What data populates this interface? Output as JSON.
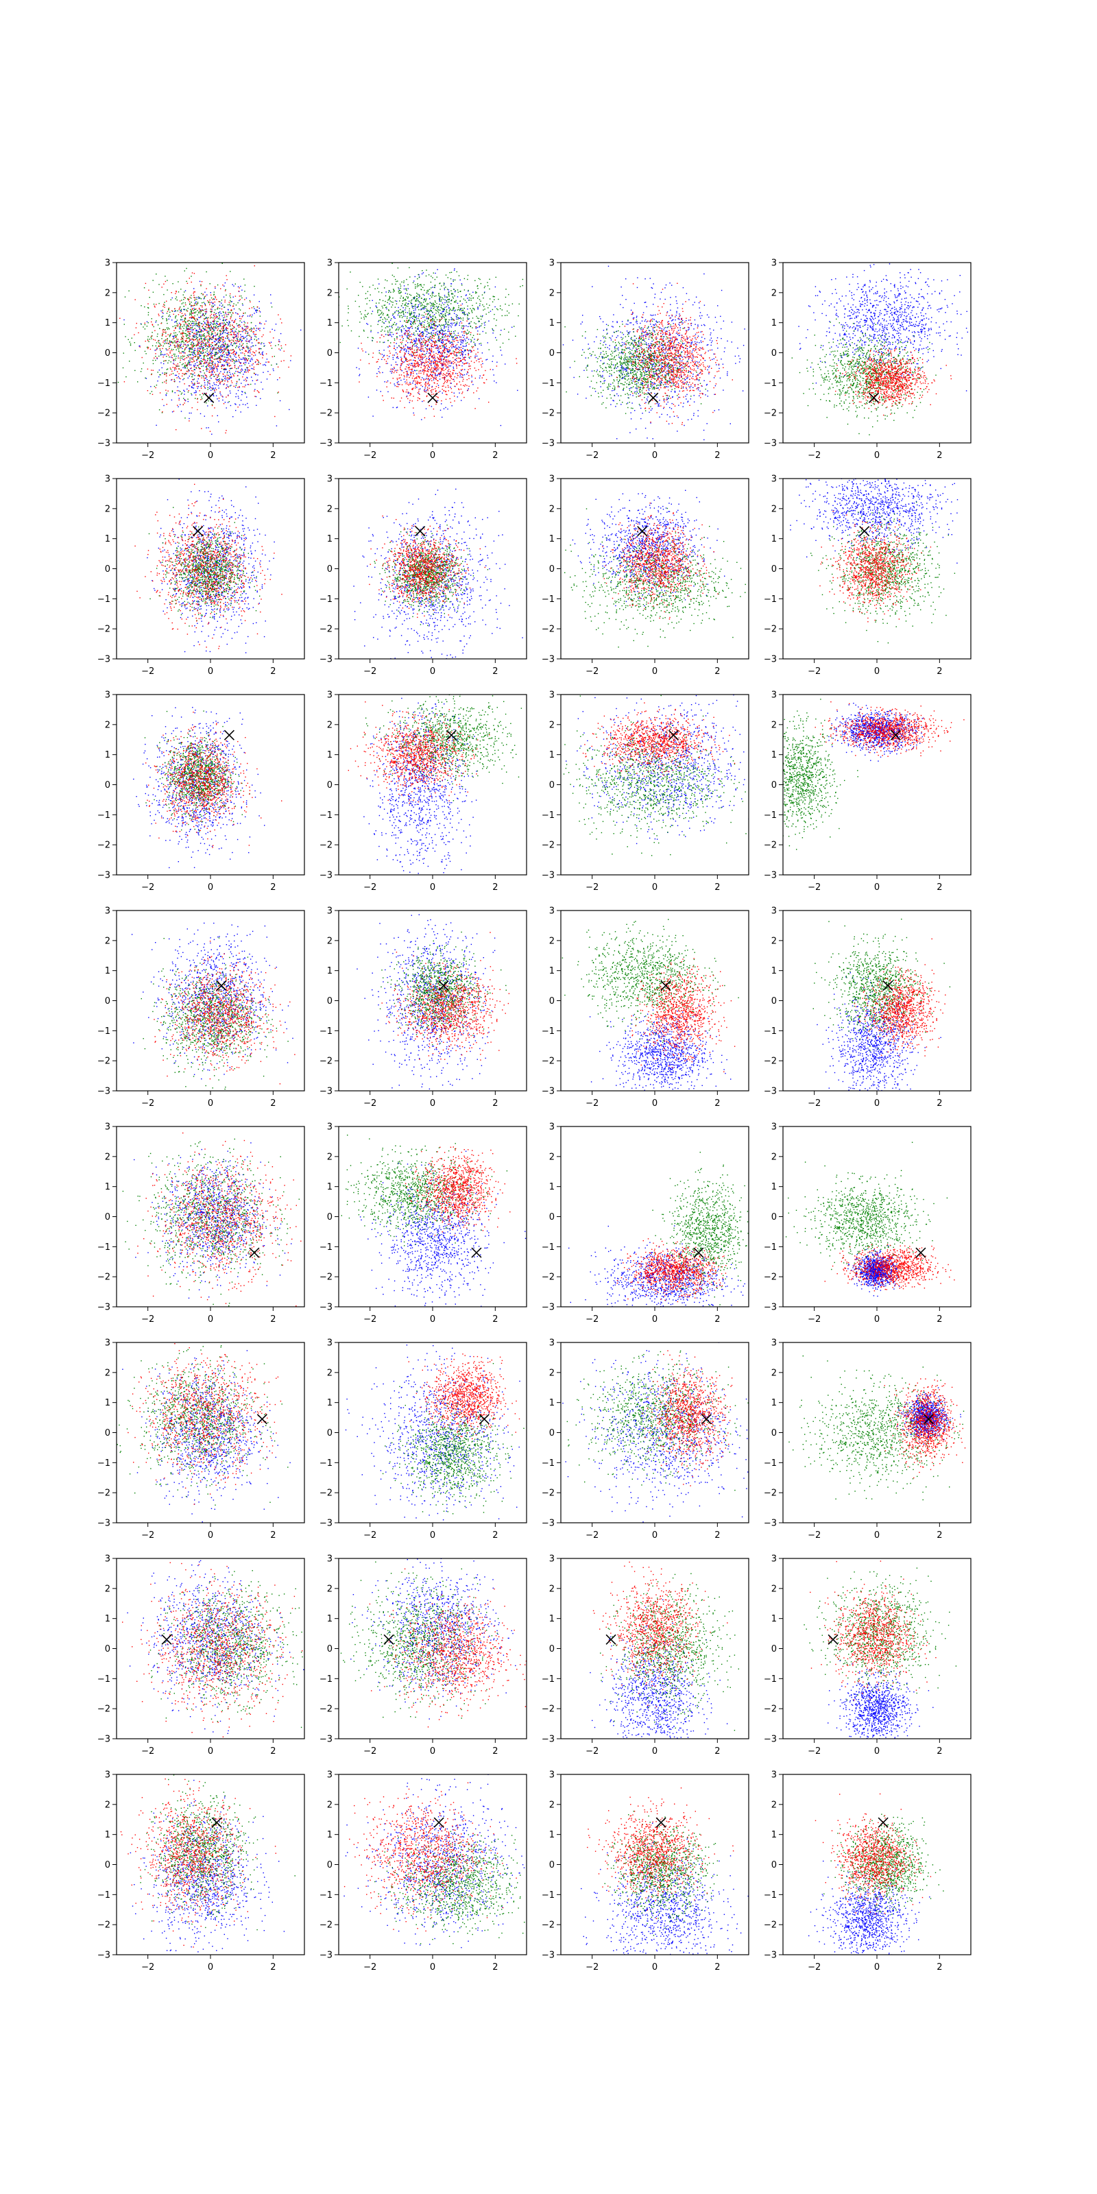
{
  "layout_grid": {
    "rows": 8,
    "cols": 4
  },
  "colors": {
    "series_a": "#0000ff",
    "series_b": "#008000",
    "series_c": "#ff0000",
    "marker": "#000000",
    "axis": "#000000"
  },
  "axes_common": {
    "xlim": [
      -3,
      3
    ],
    "ylim": [
      -3,
      3
    ],
    "xticks": [
      -2,
      0,
      2
    ],
    "yticks": [
      -3,
      -2,
      -1,
      0,
      1,
      2,
      3
    ],
    "xtick_labels": [
      "−2",
      "0",
      "2"
    ],
    "ytick_labels": [
      "−3",
      "−2",
      "−1",
      "0",
      "1",
      "2",
      "3"
    ]
  },
  "chart_data": [
    {
      "type": "scatter",
      "row": 0,
      "col": 0,
      "marker": [
        -0.05,
        -1.5
      ],
      "clusters": {
        "blue": {
          "cx": 0.2,
          "cy": 0.0,
          "sx": 0.85,
          "sy": 0.95
        },
        "green": {
          "cx": -0.4,
          "cy": 0.5,
          "sx": 0.9,
          "sy": 0.85
        },
        "red": {
          "cx": -0.1,
          "cy": 0.3,
          "sx": 0.95,
          "sy": 0.95
        }
      }
    },
    {
      "type": "scatter",
      "row": 0,
      "col": 1,
      "marker": [
        0.0,
        -1.5
      ],
      "clusters": {
        "blue": {
          "cx": 0.0,
          "cy": 0.3,
          "sx": 0.85,
          "sy": 0.9
        },
        "green": {
          "cx": -0.1,
          "cy": 1.4,
          "sx": 1.2,
          "sy": 0.6
        },
        "red": {
          "cx": 0.0,
          "cy": -0.4,
          "sx": 0.75,
          "sy": 0.6
        }
      }
    },
    {
      "type": "scatter",
      "row": 0,
      "col": 2,
      "marker": [
        -0.05,
        -1.5
      ],
      "clusters": {
        "blue": {
          "cx": 0.1,
          "cy": -0.1,
          "sx": 1.0,
          "sy": 1.0
        },
        "green": {
          "cx": -0.5,
          "cy": -0.4,
          "sx": 0.7,
          "sy": 0.6
        },
        "red": {
          "cx": 0.5,
          "cy": -0.2,
          "sx": 0.6,
          "sy": 0.7
        }
      }
    },
    {
      "type": "scatter",
      "row": 0,
      "col": 3,
      "marker": [
        -0.1,
        -1.5
      ],
      "clusters": {
        "blue": {
          "cx": 0.3,
          "cy": 1.0,
          "sx": 1.0,
          "sy": 0.75
        },
        "green": {
          "cx": -0.3,
          "cy": -0.7,
          "sx": 0.8,
          "sy": 0.6
        },
        "red": {
          "cx": 0.4,
          "cy": -0.9,
          "sx": 0.55,
          "sy": 0.4
        }
      }
    },
    {
      "type": "scatter",
      "row": 1,
      "col": 0,
      "marker": [
        -0.4,
        1.25
      ],
      "clusters": {
        "blue": {
          "cx": 0.1,
          "cy": 0.0,
          "sx": 0.7,
          "sy": 1.0
        },
        "green": {
          "cx": -0.1,
          "cy": -0.1,
          "sx": 0.55,
          "sy": 0.6
        },
        "red": {
          "cx": -0.2,
          "cy": 0.0,
          "sx": 0.75,
          "sy": 0.85
        }
      }
    },
    {
      "type": "scatter",
      "row": 1,
      "col": 1,
      "marker": [
        -0.4,
        1.25
      ],
      "clusters": {
        "blue": {
          "cx": 0.0,
          "cy": -0.4,
          "sx": 0.9,
          "sy": 1.1
        },
        "green": {
          "cx": -0.2,
          "cy": -0.2,
          "sx": 0.55,
          "sy": 0.5
        },
        "red": {
          "cx": -0.3,
          "cy": 0.0,
          "sx": 0.55,
          "sy": 0.55
        }
      }
    },
    {
      "type": "scatter",
      "row": 1,
      "col": 2,
      "marker": [
        -0.4,
        1.25
      ],
      "clusters": {
        "blue": {
          "cx": -0.2,
          "cy": 0.7,
          "sx": 0.8,
          "sy": 0.7
        },
        "green": {
          "cx": 0.0,
          "cy": -0.5,
          "sx": 1.1,
          "sy": 0.7
        },
        "red": {
          "cx": 0.1,
          "cy": 0.2,
          "sx": 0.6,
          "sy": 0.6
        }
      }
    },
    {
      "type": "scatter",
      "row": 1,
      "col": 3,
      "marker": [
        -0.4,
        1.25
      ],
      "clusters": {
        "blue": {
          "cx": 0.0,
          "cy": 2.0,
          "sx": 1.0,
          "sy": 0.6
        },
        "green": {
          "cx": 0.3,
          "cy": -0.1,
          "sx": 0.8,
          "sy": 0.7
        },
        "red": {
          "cx": -0.1,
          "cy": 0.0,
          "sx": 0.55,
          "sy": 0.6
        }
      }
    },
    {
      "type": "scatter",
      "row": 2,
      "col": 0,
      "marker": [
        0.6,
        1.65
      ],
      "clusters": {
        "blue": {
          "cx": -0.4,
          "cy": 0.0,
          "sx": 0.7,
          "sy": 1.0
        },
        "green": {
          "cx": -0.4,
          "cy": 0.3,
          "sx": 0.5,
          "sy": 0.6
        },
        "red": {
          "cx": -0.3,
          "cy": 0.1,
          "sx": 0.6,
          "sy": 0.7
        }
      }
    },
    {
      "type": "scatter",
      "row": 2,
      "col": 1,
      "marker": [
        0.6,
        1.65
      ],
      "clusters": {
        "blue": {
          "cx": -0.4,
          "cy": -0.2,
          "sx": 0.7,
          "sy": 1.3
        },
        "green": {
          "cx": 0.6,
          "cy": 1.5,
          "sx": 0.9,
          "sy": 0.6
        },
        "red": {
          "cx": -0.5,
          "cy": 1.0,
          "sx": 0.7,
          "sy": 0.55
        }
      }
    },
    {
      "type": "scatter",
      "row": 2,
      "col": 2,
      "marker": [
        0.6,
        1.65
      ],
      "clusters": {
        "blue": {
          "cx": 0.4,
          "cy": 0.6,
          "sx": 1.1,
          "sy": 1.0
        },
        "green": {
          "cx": -0.2,
          "cy": 0.1,
          "sx": 1.1,
          "sy": 0.8
        },
        "red": {
          "cx": 0.0,
          "cy": 1.4,
          "sx": 0.8,
          "sy": 0.4
        }
      }
    },
    {
      "type": "scatter",
      "row": 2,
      "col": 3,
      "marker": [
        0.6,
        1.65
      ],
      "clusters": {
        "blue": {
          "cx": 0.0,
          "cy": 1.8,
          "sx": 0.6,
          "sy": 0.3
        },
        "green": {
          "cx": -2.4,
          "cy": 0.2,
          "sx": 0.5,
          "sy": 0.8
        },
        "red": {
          "cx": 0.3,
          "cy": 1.8,
          "sx": 0.75,
          "sy": 0.3
        }
      }
    },
    {
      "type": "scatter",
      "row": 3,
      "col": 0,
      "marker": [
        0.35,
        0.5
      ],
      "clusters": {
        "blue": {
          "cx": 0.2,
          "cy": 0.1,
          "sx": 0.8,
          "sy": 1.0
        },
        "green": {
          "cx": 0.0,
          "cy": -0.6,
          "sx": 0.75,
          "sy": 0.75
        },
        "red": {
          "cx": 0.3,
          "cy": -0.5,
          "sx": 0.75,
          "sy": 0.75
        }
      }
    },
    {
      "type": "scatter",
      "row": 3,
      "col": 1,
      "marker": [
        0.35,
        0.5
      ],
      "clusters": {
        "blue": {
          "cx": 0.0,
          "cy": 0.0,
          "sx": 0.8,
          "sy": 1.2
        },
        "green": {
          "cx": 0.2,
          "cy": 0.3,
          "sx": 0.6,
          "sy": 0.6
        },
        "red": {
          "cx": 0.5,
          "cy": -0.3,
          "sx": 0.7,
          "sy": 0.6
        }
      }
    },
    {
      "type": "scatter",
      "row": 3,
      "col": 2,
      "marker": [
        0.35,
        0.5
      ],
      "clusters": {
        "blue": {
          "cx": 0.3,
          "cy": -1.8,
          "sx": 0.7,
          "sy": 0.6
        },
        "green": {
          "cx": -0.3,
          "cy": 0.8,
          "sx": 0.9,
          "sy": 0.7
        },
        "red": {
          "cx": 0.8,
          "cy": -0.4,
          "sx": 0.55,
          "sy": 0.65
        }
      }
    },
    {
      "type": "scatter",
      "row": 3,
      "col": 3,
      "marker": [
        0.35,
        0.5
      ],
      "clusters": {
        "blue": {
          "cx": -0.1,
          "cy": -1.5,
          "sx": 0.6,
          "sy": 0.8
        },
        "green": {
          "cx": 0.0,
          "cy": 0.4,
          "sx": 0.65,
          "sy": 0.7
        },
        "red": {
          "cx": 0.8,
          "cy": -0.3,
          "sx": 0.5,
          "sy": 0.55
        }
      }
    },
    {
      "type": "scatter",
      "row": 4,
      "col": 0,
      "marker": [
        1.4,
        -1.2
      ],
      "clusters": {
        "blue": {
          "cx": 0.1,
          "cy": 0.0,
          "sx": 0.75,
          "sy": 0.9
        },
        "green": {
          "cx": 0.0,
          "cy": 0.0,
          "sx": 0.95,
          "sy": 0.95
        },
        "red": {
          "cx": 0.3,
          "cy": -0.1,
          "sx": 0.95,
          "sy": 0.95
        }
      }
    },
    {
      "type": "scatter",
      "row": 4,
      "col": 1,
      "marker": [
        1.4,
        -1.2
      ],
      "clusters": {
        "blue": {
          "cx": 0.1,
          "cy": -0.8,
          "sx": 0.8,
          "sy": 0.9
        },
        "green": {
          "cx": -0.6,
          "cy": 0.8,
          "sx": 0.9,
          "sy": 0.6
        },
        "red": {
          "cx": 0.8,
          "cy": 0.9,
          "sx": 0.55,
          "sy": 0.55
        }
      }
    },
    {
      "type": "scatter",
      "row": 4,
      "col": 2,
      "marker": [
        1.4,
        -1.2
      ],
      "clusters": {
        "blue": {
          "cx": 0.3,
          "cy": -2.1,
          "sx": 0.9,
          "sy": 0.5
        },
        "green": {
          "cx": 1.7,
          "cy": -0.5,
          "sx": 0.6,
          "sy": 0.8
        },
        "red": {
          "cx": 0.6,
          "cy": -1.8,
          "sx": 0.65,
          "sy": 0.35
        }
      }
    },
    {
      "type": "scatter",
      "row": 4,
      "col": 3,
      "marker": [
        1.4,
        -1.2
      ],
      "clusters": {
        "blue": {
          "cx": 0.0,
          "cy": -1.8,
          "sx": 0.3,
          "sy": 0.25
        },
        "green": {
          "cx": -0.4,
          "cy": -0.1,
          "sx": 0.8,
          "sy": 0.6
        },
        "red": {
          "cx": 0.5,
          "cy": -1.7,
          "sx": 0.65,
          "sy": 0.3
        }
      }
    },
    {
      "type": "scatter",
      "row": 5,
      "col": 0,
      "marker": [
        1.65,
        0.45
      ],
      "clusters": {
        "blue": {
          "cx": -0.1,
          "cy": 0.0,
          "sx": 0.8,
          "sy": 1.0
        },
        "green": {
          "cx": -0.4,
          "cy": 0.4,
          "sx": 0.9,
          "sy": 0.9
        },
        "red": {
          "cx": -0.2,
          "cy": 0.6,
          "sx": 0.95,
          "sy": 0.9
        }
      }
    },
    {
      "type": "scatter",
      "row": 5,
      "col": 1,
      "marker": [
        1.65,
        0.45
      ],
      "clusters": {
        "blue": {
          "cx": 0.3,
          "cy": -0.2,
          "sx": 1.0,
          "sy": 1.1
        },
        "green": {
          "cx": 0.6,
          "cy": -0.7,
          "sx": 0.7,
          "sy": 0.7
        },
        "red": {
          "cx": 1.1,
          "cy": 1.2,
          "sx": 0.55,
          "sy": 0.55
        }
      }
    },
    {
      "type": "scatter",
      "row": 5,
      "col": 2,
      "marker": [
        1.65,
        0.45
      ],
      "clusters": {
        "blue": {
          "cx": 0.3,
          "cy": 0.0,
          "sx": 1.1,
          "sy": 1.1
        },
        "green": {
          "cx": 0.0,
          "cy": 0.5,
          "sx": 1.0,
          "sy": 0.8
        },
        "red": {
          "cx": 1.1,
          "cy": 0.6,
          "sx": 0.55,
          "sy": 0.7
        }
      }
    },
    {
      "type": "scatter",
      "row": 5,
      "col": 3,
      "marker": [
        1.65,
        0.45
      ],
      "clusters": {
        "blue": {
          "cx": 1.6,
          "cy": 0.5,
          "sx": 0.3,
          "sy": 0.3
        },
        "green": {
          "cx": 0.0,
          "cy": 0.0,
          "sx": 1.0,
          "sy": 0.8
        },
        "red": {
          "cx": 1.6,
          "cy": 0.3,
          "sx": 0.4,
          "sy": 0.6
        }
      }
    },
    {
      "type": "scatter",
      "row": 6,
      "col": 0,
      "marker": [
        -1.4,
        0.3
      ],
      "clusters": {
        "blue": {
          "cx": 0.0,
          "cy": 0.3,
          "sx": 0.9,
          "sy": 1.0
        },
        "green": {
          "cx": 0.6,
          "cy": 0.1,
          "sx": 0.9,
          "sy": 0.9
        },
        "red": {
          "cx": 0.2,
          "cy": 0.0,
          "sx": 1.0,
          "sy": 1.0
        }
      }
    },
    {
      "type": "scatter",
      "row": 6,
      "col": 1,
      "marker": [
        -1.4,
        0.3
      ],
      "clusters": {
        "blue": {
          "cx": 0.2,
          "cy": 0.6,
          "sx": 0.9,
          "sy": 1.0
        },
        "green": {
          "cx": -0.4,
          "cy": 0.2,
          "sx": 0.9,
          "sy": 0.9
        },
        "red": {
          "cx": 0.7,
          "cy": -0.2,
          "sx": 0.8,
          "sy": 0.8
        }
      }
    },
    {
      "type": "scatter",
      "row": 6,
      "col": 2,
      "marker": [
        -1.4,
        0.3
      ],
      "clusters": {
        "blue": {
          "cx": 0.0,
          "cy": -1.6,
          "sx": 0.7,
          "sy": 0.9
        },
        "green": {
          "cx": 0.5,
          "cy": 0.0,
          "sx": 0.8,
          "sy": 0.9
        },
        "red": {
          "cx": 0.0,
          "cy": 0.6,
          "sx": 0.65,
          "sy": 0.75
        }
      }
    },
    {
      "type": "scatter",
      "row": 6,
      "col": 3,
      "marker": [
        -1.4,
        0.3
      ],
      "clusters": {
        "blue": {
          "cx": 0.0,
          "cy": -2.0,
          "sx": 0.5,
          "sy": 0.5
        },
        "green": {
          "cx": 0.1,
          "cy": 0.5,
          "sx": 0.8,
          "sy": 0.8
        },
        "red": {
          "cx": -0.1,
          "cy": 0.4,
          "sx": 0.6,
          "sy": 0.7
        }
      }
    },
    {
      "type": "scatter",
      "row": 7,
      "col": 0,
      "marker": [
        0.2,
        1.4
      ],
      "clusters": {
        "blue": {
          "cx": -0.2,
          "cy": -0.5,
          "sx": 0.8,
          "sy": 1.0
        },
        "green": {
          "cx": -0.3,
          "cy": 0.4,
          "sx": 0.7,
          "sy": 0.85
        },
        "red": {
          "cx": -0.6,
          "cy": 0.3,
          "sx": 0.75,
          "sy": 0.9
        }
      }
    },
    {
      "type": "scatter",
      "row": 7,
      "col": 1,
      "marker": [
        0.2,
        1.4
      ],
      "clusters": {
        "blue": {
          "cx": 0.3,
          "cy": 0.0,
          "sx": 1.0,
          "sy": 1.1
        },
        "green": {
          "cx": 0.8,
          "cy": -0.7,
          "sx": 0.9,
          "sy": 0.7
        },
        "red": {
          "cx": -0.3,
          "cy": 0.4,
          "sx": 0.9,
          "sy": 0.85
        }
      }
    },
    {
      "type": "scatter",
      "row": 7,
      "col": 2,
      "marker": [
        0.2,
        1.4
      ],
      "clusters": {
        "blue": {
          "cx": 0.3,
          "cy": -1.6,
          "sx": 0.9,
          "sy": 0.9
        },
        "green": {
          "cx": 0.2,
          "cy": -0.2,
          "sx": 0.7,
          "sy": 0.65
        },
        "red": {
          "cx": 0.0,
          "cy": 0.4,
          "sx": 0.7,
          "sy": 0.65
        }
      }
    },
    {
      "type": "scatter",
      "row": 7,
      "col": 3,
      "marker": [
        0.2,
        1.4
      ],
      "clusters": {
        "blue": {
          "cx": -0.3,
          "cy": -1.8,
          "sx": 0.6,
          "sy": 0.6
        },
        "green": {
          "cx": 0.3,
          "cy": 0.0,
          "sx": 0.6,
          "sy": 0.65
        },
        "red": {
          "cx": -0.1,
          "cy": 0.2,
          "sx": 0.55,
          "sy": 0.6
        }
      }
    }
  ]
}
